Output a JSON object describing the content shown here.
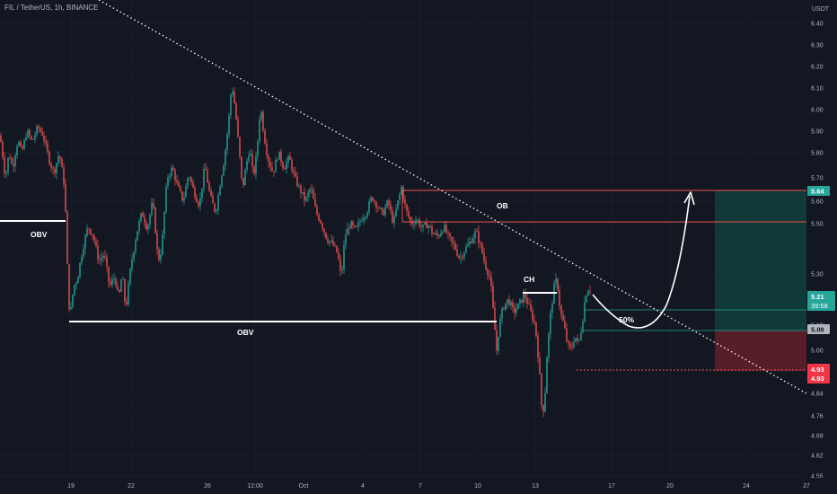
{
  "header": {
    "title": "FIL / TetherUS, 1h, BINANCE"
  },
  "colors": {
    "background": "#131722",
    "up": "#26a69a",
    "down": "#ef5350",
    "grid": "#1e222d",
    "target_zone": "#0f3c3a",
    "stop_zone": "#5b1f2a",
    "current_price": "#26a69a",
    "entry_price": "#787b86",
    "stop_price": "#f23645"
  },
  "chart_data": {
    "type": "candlestick",
    "symbol": "FIL / TetherUS",
    "interval": "1h",
    "exchange": "BINANCE",
    "y_unit": "USDT",
    "ylim": [
      4.55,
      6.45
    ],
    "y_ticks": [
      "6.40",
      "6.30",
      "6.20",
      "6.10",
      "6.00",
      "5.90",
      "5.80",
      "5.70",
      "5.60",
      "5.50",
      "5.30",
      "5.10",
      "5.00",
      "4.84",
      "4.76",
      "4.69",
      "4.62",
      "4.55"
    ],
    "x_ticks": [
      "19",
      "22",
      "26",
      "12:00",
      "Oct",
      "4",
      "7",
      "10",
      "13",
      "17",
      "20",
      "24",
      "27"
    ],
    "price_path": [
      [
        0,
        5.88
      ],
      [
        6,
        5.7
      ],
      [
        10,
        5.8
      ],
      [
        14,
        5.74
      ],
      [
        20,
        5.86
      ],
      [
        24,
        5.8
      ],
      [
        30,
        5.9
      ],
      [
        36,
        5.85
      ],
      [
        42,
        5.92
      ],
      [
        48,
        5.88
      ],
      [
        54,
        5.78
      ],
      [
        60,
        5.72
      ],
      [
        66,
        5.8
      ],
      [
        72,
        5.66
      ],
      [
        76,
        5.22
      ],
      [
        78,
        5.13
      ],
      [
        82,
        5.25
      ],
      [
        86,
        5.28
      ],
      [
        92,
        5.4
      ],
      [
        98,
        5.49
      ],
      [
        104,
        5.45
      ],
      [
        110,
        5.35
      ],
      [
        116,
        5.38
      ],
      [
        122,
        5.25
      ],
      [
        128,
        5.29
      ],
      [
        132,
        5.2
      ],
      [
        136,
        5.3
      ],
      [
        140,
        5.16
      ],
      [
        146,
        5.34
      ],
      [
        152,
        5.46
      ],
      [
        158,
        5.55
      ],
      [
        164,
        5.48
      ],
      [
        170,
        5.6
      ],
      [
        176,
        5.35
      ],
      [
        180,
        5.4
      ],
      [
        186,
        5.7
      ],
      [
        192,
        5.74
      ],
      [
        198,
        5.66
      ],
      [
        204,
        5.6
      ],
      [
        210,
        5.72
      ],
      [
        216,
        5.64
      ],
      [
        222,
        5.58
      ],
      [
        228,
        5.75
      ],
      [
        234,
        5.62
      ],
      [
        240,
        5.55
      ],
      [
        246,
        5.7
      ],
      [
        250,
        5.78
      ],
      [
        254,
        5.92
      ],
      [
        258,
        6.12
      ],
      [
        262,
        6.0
      ],
      [
        266,
        5.82
      ],
      [
        270,
        5.65
      ],
      [
        274,
        5.75
      ],
      [
        278,
        5.82
      ],
      [
        282,
        5.7
      ],
      [
        286,
        5.8
      ],
      [
        290,
        6.02
      ],
      [
        294,
        5.88
      ],
      [
        298,
        5.78
      ],
      [
        304,
        5.72
      ],
      [
        310,
        5.8
      ],
      [
        316,
        5.74
      ],
      [
        322,
        5.78
      ],
      [
        328,
        5.7
      ],
      [
        334,
        5.65
      ],
      [
        340,
        5.6
      ],
      [
        346,
        5.66
      ],
      [
        352,
        5.55
      ],
      [
        358,
        5.5
      ],
      [
        364,
        5.44
      ],
      [
        370,
        5.42
      ],
      [
        376,
        5.38
      ],
      [
        380,
        5.28
      ],
      [
        384,
        5.45
      ],
      [
        390,
        5.5
      ],
      [
        396,
        5.47
      ],
      [
        402,
        5.52
      ],
      [
        408,
        5.55
      ],
      [
        414,
        5.62
      ],
      [
        420,
        5.58
      ],
      [
        426,
        5.54
      ],
      [
        432,
        5.6
      ],
      [
        438,
        5.5
      ],
      [
        442,
        5.58
      ],
      [
        447,
        5.66
      ],
      [
        452,
        5.56
      ],
      [
        458,
        5.5
      ],
      [
        464,
        5.52
      ],
      [
        470,
        5.48
      ],
      [
        476,
        5.5
      ],
      [
        482,
        5.46
      ],
      [
        488,
        5.45
      ],
      [
        494,
        5.49
      ],
      [
        500,
        5.44
      ],
      [
        506,
        5.41
      ],
      [
        512,
        5.36
      ],
      [
        518,
        5.4
      ],
      [
        524,
        5.43
      ],
      [
        530,
        5.47
      ],
      [
        536,
        5.4
      ],
      [
        540,
        5.34
      ],
      [
        546,
        5.28
      ],
      [
        550,
        5.12
      ],
      [
        553,
        5.0
      ],
      [
        556,
        5.1
      ],
      [
        560,
        5.17
      ],
      [
        566,
        5.2
      ],
      [
        572,
        5.15
      ],
      [
        578,
        5.18
      ],
      [
        584,
        5.22
      ],
      [
        590,
        5.16
      ],
      [
        596,
        5.1
      ],
      [
        600,
        4.95
      ],
      [
        603,
        4.8
      ],
      [
        606,
        4.78
      ],
      [
        609,
        4.98
      ],
      [
        613,
        5.14
      ],
      [
        617,
        5.25
      ],
      [
        620,
        5.28
      ],
      [
        624,
        5.15
      ],
      [
        628,
        5.1
      ],
      [
        632,
        5.02
      ],
      [
        636,
        5.0
      ],
      [
        640,
        5.06
      ],
      [
        644,
        5.02
      ],
      [
        648,
        5.1
      ],
      [
        652,
        5.22
      ],
      [
        656,
        5.25
      ],
      [
        660,
        5.21
      ]
    ],
    "levels": {
      "current_price": 5.21,
      "entry_price": 5.08,
      "stop_price": 4.93,
      "stop_price_2": 4.93,
      "target_price": 5.64,
      "countdown": "39:58"
    },
    "annotations": {
      "obv_left": "OBV",
      "obv_bottom": "OBV",
      "ob": "OB",
      "ch": "CH",
      "half": "50%"
    }
  }
}
